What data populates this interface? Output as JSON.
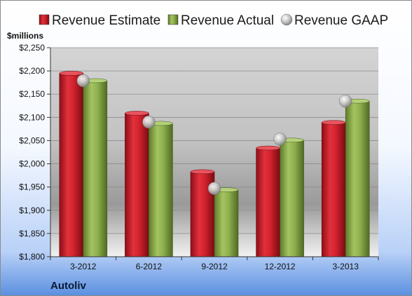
{
  "chart_data": {
    "type": "bar",
    "unit_label": "$millions",
    "company": "Autoliv",
    "categories": [
      "3-2012",
      "6-2012",
      "9-2012",
      "12-2012",
      "3-2013"
    ],
    "ylim": [
      1800,
      2250
    ],
    "yticks": [
      1800,
      1850,
      1900,
      1950,
      2000,
      2050,
      2100,
      2150,
      2200,
      2250
    ],
    "ytick_labels": [
      "$1,800",
      "$1,850",
      "$1,900",
      "$1,950",
      "$2,000",
      "$2,050",
      "$2,100",
      "$2,150",
      "$2,200",
      "$2,250"
    ],
    "grid": true,
    "legend_position": "top",
    "series": [
      {
        "name": "Revenue Estimate",
        "kind": "bar",
        "color": "#cc1f2a",
        "values": [
          2195,
          2109,
          1983,
          2034,
          2089
        ]
      },
      {
        "name": "Revenue Actual",
        "kind": "bar",
        "color": "#8aaa4a",
        "values": [
          2179,
          2087,
          1944,
          2051,
          2135
        ]
      },
      {
        "name": "Revenue GAAP",
        "kind": "marker",
        "color": "#b8b8b8",
        "values": [
          2179,
          2090,
          1947,
          2053,
          2135
        ]
      }
    ]
  }
}
